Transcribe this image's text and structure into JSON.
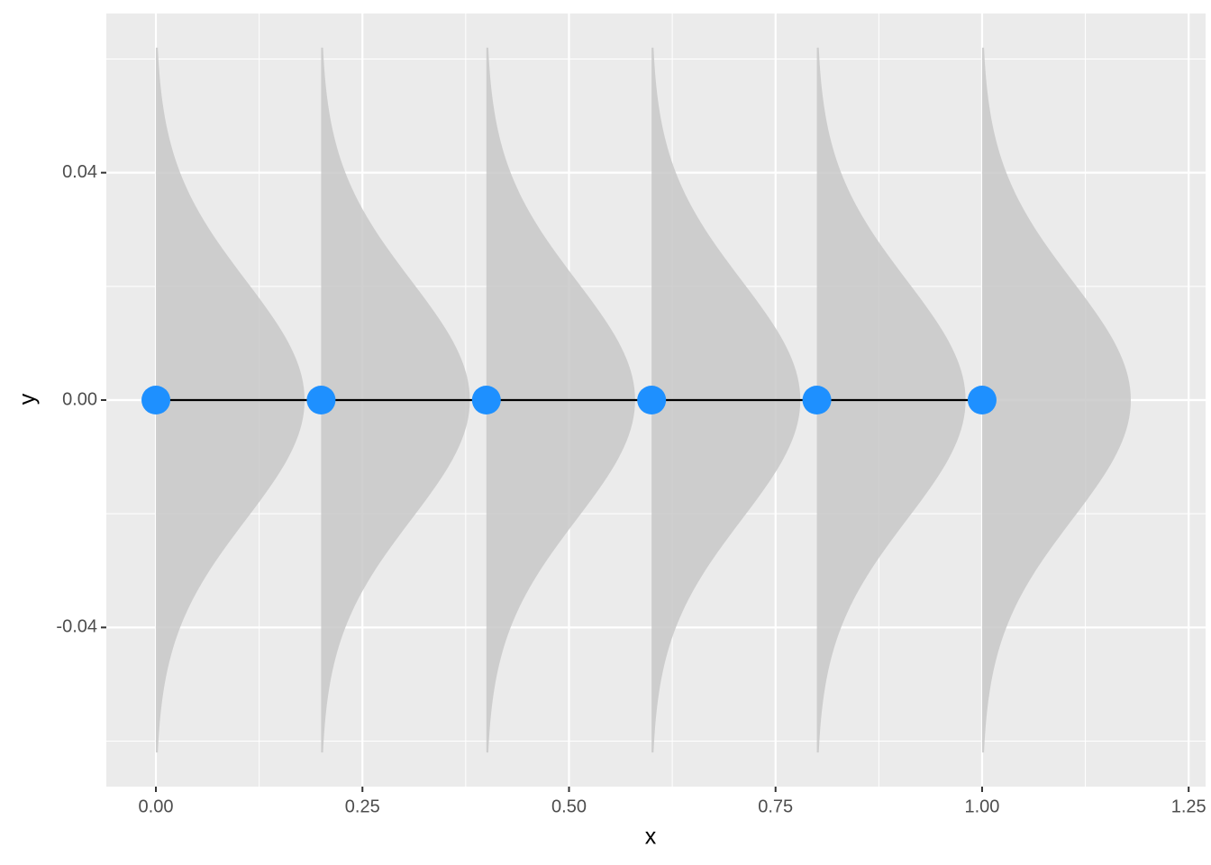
{
  "chart_data": {
    "type": "line",
    "x": [
      0,
      0.2,
      0.4,
      0.6,
      0.8,
      1.0
    ],
    "y": [
      0,
      0,
      0,
      0,
      0,
      0
    ],
    "color": "#1E90FF",
    "line_color": "#000000",
    "density": {
      "sd": 0.021,
      "extent": 0.062,
      "peak_width": 0.18,
      "color": "#c8c8c8"
    },
    "xlabel": "x",
    "ylabel": "y",
    "xlim": [
      -0.06,
      1.2705
    ],
    "ylim": [
      -0.068,
      0.068
    ],
    "xticks": [
      {
        "value": 0,
        "label": "0.00"
      },
      {
        "value": 0.25,
        "label": "0.25"
      },
      {
        "value": 0.5,
        "label": "0.50"
      },
      {
        "value": 0.75,
        "label": "0.75"
      },
      {
        "value": 1,
        "label": "1.00"
      },
      {
        "value": 1.25,
        "label": "1.25"
      }
    ],
    "yticks": [
      {
        "value": -0.04,
        "label": "-0.04"
      },
      {
        "value": 0,
        "label": "0.00"
      },
      {
        "value": 0.04,
        "label": "0.04"
      }
    ],
    "x_minor_grid": [
      0.125,
      0.375,
      0.625,
      0.875,
      1.125
    ],
    "y_minor_grid": [
      -0.06,
      -0.02,
      0.02,
      0.06
    ],
    "grid": true
  }
}
